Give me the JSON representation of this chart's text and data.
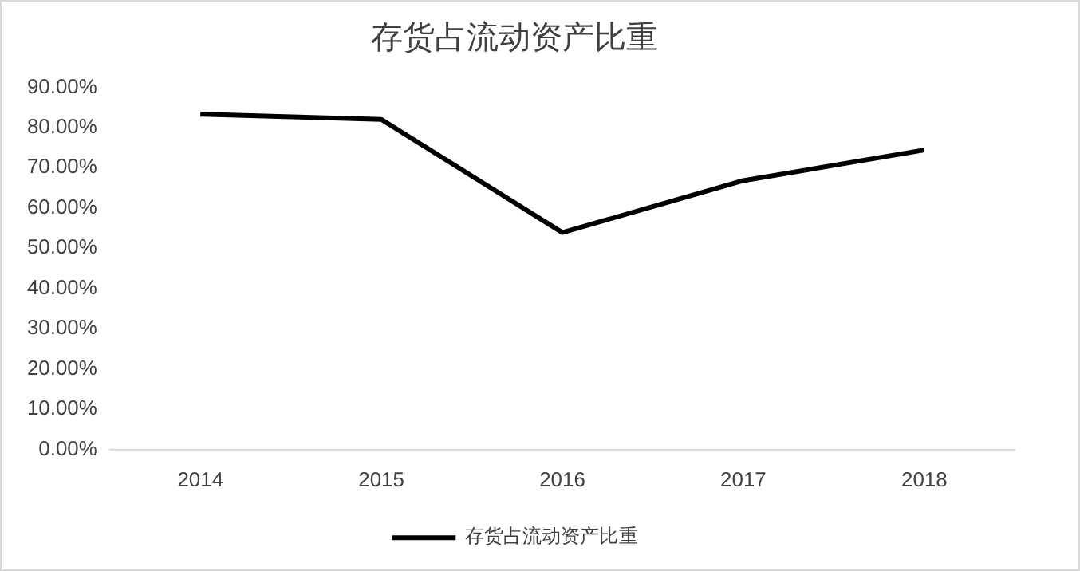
{
  "chart_data": {
    "type": "line",
    "title": "存货占流动资产比重",
    "categories": [
      "2014",
      "2015",
      "2016",
      "2017",
      "2018"
    ],
    "series": [
      {
        "name": "存货占流动资产比重",
        "color": "#000000",
        "values": [
          83.3,
          82.0,
          53.9,
          66.8,
          74.4
        ]
      }
    ],
    "ylim": [
      0,
      90
    ],
    "yticks": [
      {
        "value": 0,
        "label": "0.00%"
      },
      {
        "value": 10,
        "label": "10.00%"
      },
      {
        "value": 20,
        "label": "20.00%"
      },
      {
        "value": 30,
        "label": "30.00%"
      },
      {
        "value": 40,
        "label": "40.00%"
      },
      {
        "value": 50,
        "label": "50.00%"
      },
      {
        "value": 60,
        "label": "60.00%"
      },
      {
        "value": 70,
        "label": "70.00%"
      },
      {
        "value": 80,
        "label": "80.00%"
      },
      {
        "value": 90,
        "label": "90.00%"
      }
    ],
    "grid": false,
    "legend": "bottom",
    "marker": "none",
    "line_style": "solid"
  }
}
